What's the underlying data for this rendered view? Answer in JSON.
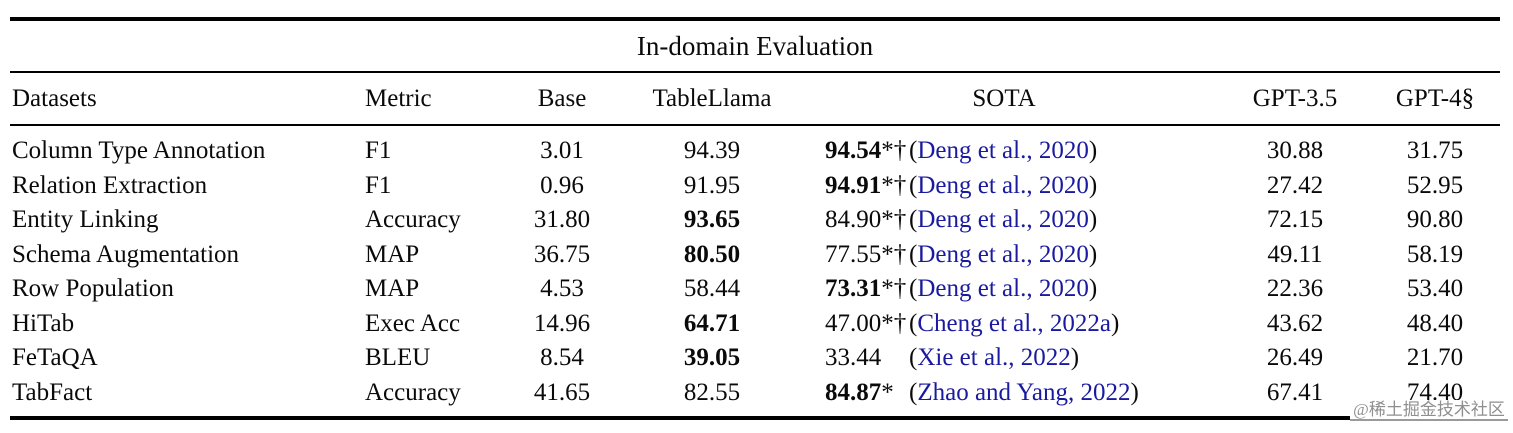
{
  "title": "In-domain Evaluation",
  "paren_open": "(",
  "paren_close": ")",
  "columns": {
    "datasets": "Datasets",
    "metric": "Metric",
    "base": "Base",
    "tablellama": "TableLlama",
    "sota": "SOTA",
    "gpt35": "GPT-3.5",
    "gpt4": "GPT-4§"
  },
  "rows": [
    {
      "dataset": "Column Type Annotation",
      "metric": "F1",
      "base": "3.01",
      "tl": "94.39",
      "tl_bold": false,
      "sota_num": "94.54",
      "sota_bold": true,
      "sota_markers": "*†",
      "citation": "Deng et al., 2020",
      "gpt35": "30.88",
      "gpt4": "31.75"
    },
    {
      "dataset": "Relation Extraction",
      "metric": "F1",
      "base": "0.96",
      "tl": "91.95",
      "tl_bold": false,
      "sota_num": "94.91",
      "sota_bold": true,
      "sota_markers": "*†",
      "citation": "Deng et al., 2020",
      "gpt35": "27.42",
      "gpt4": "52.95"
    },
    {
      "dataset": "Entity Linking",
      "metric": "Accuracy",
      "base": "31.80",
      "tl": "93.65",
      "tl_bold": true,
      "sota_num": "84.90",
      "sota_bold": false,
      "sota_markers": "*†",
      "citation": "Deng et al., 2020",
      "gpt35": "72.15",
      "gpt4": "90.80"
    },
    {
      "dataset": "Schema Augmentation",
      "metric": "MAP",
      "base": "36.75",
      "tl": "80.50",
      "tl_bold": true,
      "sota_num": "77.55",
      "sota_bold": false,
      "sota_markers": "*†",
      "citation": "Deng et al., 2020",
      "gpt35": "49.11",
      "gpt4": "58.19"
    },
    {
      "dataset": "Row Population",
      "metric": "MAP",
      "base": "4.53",
      "tl": "58.44",
      "tl_bold": false,
      "sota_num": "73.31",
      "sota_bold": true,
      "sota_markers": "*†",
      "citation": "Deng et al., 2020",
      "gpt35": "22.36",
      "gpt4": "53.40"
    },
    {
      "dataset": "HiTab",
      "metric": "Exec Acc",
      "base": "14.96",
      "tl": "64.71",
      "tl_bold": true,
      "sota_num": "47.00",
      "sota_bold": false,
      "sota_markers": "*†",
      "citation": "Cheng et al., 2022a",
      "gpt35": "43.62",
      "gpt4": "48.40"
    },
    {
      "dataset": "FeTaQA",
      "metric": "BLEU",
      "base": "8.54",
      "tl": "39.05",
      "tl_bold": true,
      "sota_num": "33.44",
      "sota_bold": false,
      "sota_markers": "",
      "citation": "Xie et al., 2022",
      "gpt35": "26.49",
      "gpt4": "21.70"
    },
    {
      "dataset": "TabFact",
      "metric": "Accuracy",
      "base": "41.65",
      "tl": "82.55",
      "tl_bold": false,
      "sota_num": "84.87",
      "sota_bold": true,
      "sota_markers": "*",
      "citation": "Zhao and Yang, 2022",
      "gpt35": "67.41",
      "gpt4": "74.40"
    }
  ],
  "watermark": "@稀土掘金技术社区",
  "colors": {
    "citation_link": "#1a1aa0",
    "rule": "#000000",
    "watermark": "#8f8f8f"
  }
}
